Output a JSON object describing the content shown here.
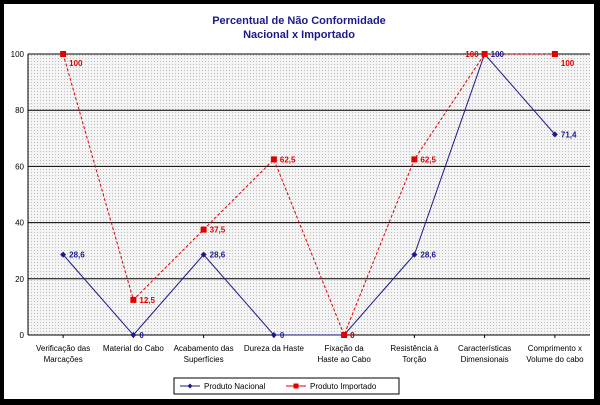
{
  "chart_data": {
    "type": "line",
    "title": [
      "Percentual de Não Conformidade",
      "Nacional x Importado"
    ],
    "categories": [
      [
        "Verificação das",
        "Marcações"
      ],
      [
        "Material do Cabo"
      ],
      [
        "Acabamento das",
        "Superfícies"
      ],
      [
        "Dureza da Haste"
      ],
      [
        "Fixação da",
        "Haste ao Cabo"
      ],
      [
        "Resistência à",
        "Torção"
      ],
      [
        "Características",
        "Dimensionais"
      ],
      [
        "Comprimento x",
        "Volume do cabo"
      ]
    ],
    "series": [
      {
        "name": "Produto Nacional",
        "values": [
          28.6,
          0,
          28.6,
          0,
          0,
          28.6,
          100,
          71.4
        ],
        "labels": [
          "28,6",
          "0",
          "28,6",
          "0",
          "0",
          "28,6",
          "100",
          "71,4"
        ],
        "color": "#1a1a8c",
        "line_style": "solid",
        "marker": "diamond"
      },
      {
        "name": "Produto Importado",
        "values": [
          100,
          12.5,
          37.5,
          62.5,
          0,
          62.5,
          100,
          100
        ],
        "labels": [
          "100",
          "12,5",
          "37,5",
          "62,5",
          "0",
          "62,5",
          "100",
          "100"
        ],
        "color": "#e00000",
        "line_style": "dashed",
        "marker": "square"
      }
    ],
    "ylim": [
      0,
      100
    ],
    "yticks": [
      0,
      20,
      40,
      60,
      80,
      100
    ],
    "ytick_labels": [
      "0",
      "20",
      "40",
      "60",
      "80",
      "100"
    ],
    "grid": true,
    "legend": "bottom"
  }
}
